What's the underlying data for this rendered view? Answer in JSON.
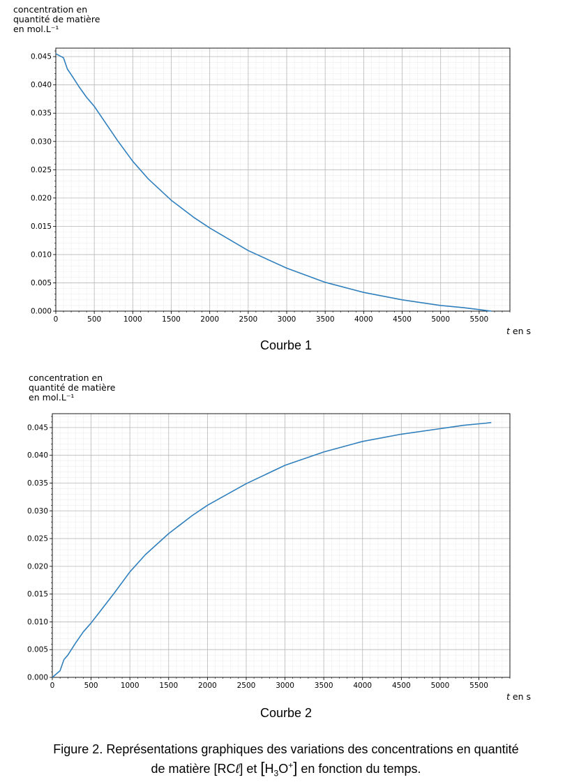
{
  "chart_data": [
    {
      "type": "line",
      "title": "",
      "caption": "Courbe 1",
      "ylabel": "concentration en\nquantité de matière\nen mol.L⁻¹",
      "xlabel_var": "t",
      "xlabel_unit": "en s",
      "xlim": [
        0,
        5900
      ],
      "ylim": [
        0,
        0.0465
      ],
      "xticks": [
        0,
        500,
        1000,
        1500,
        2000,
        2500,
        3000,
        3500,
        4000,
        4500,
        5000,
        5500
      ],
      "yticks": [
        "0.000",
        "0.005",
        "0.010",
        "0.015",
        "0.020",
        "0.025",
        "0.030",
        "0.035",
        "0.040",
        "0.045"
      ],
      "grid": true,
      "line_color": "#2f7fbd",
      "x": [
        0,
        100,
        150,
        200,
        300,
        400,
        500,
        600,
        800,
        1000,
        1200,
        1500,
        1800,
        2000,
        2500,
        3000,
        3500,
        4000,
        4500,
        5000,
        5300,
        5600,
        5660
      ],
      "y": [
        0.0455,
        0.0448,
        0.0428,
        0.0418,
        0.0397,
        0.0378,
        0.0362,
        0.0342,
        0.0302,
        0.0265,
        0.0234,
        0.0196,
        0.0165,
        0.0147,
        0.0107,
        0.0076,
        0.0051,
        0.0033,
        0.002,
        0.001,
        0.0006,
        0.0001,
        0.0
      ]
    },
    {
      "type": "line",
      "title": "",
      "caption": "Courbe 2",
      "ylabel": "concentration en\nquantité de matière\nen mol.L⁻¹",
      "xlabel_var": "t",
      "xlabel_unit": "en s",
      "xlim": [
        0,
        5900
      ],
      "ylim": [
        0,
        0.0475
      ],
      "xticks": [
        0,
        500,
        1000,
        1500,
        2000,
        2500,
        3000,
        3500,
        4000,
        4500,
        5000,
        5500
      ],
      "yticks": [
        "0.000",
        "0.005",
        "0.010",
        "0.015",
        "0.020",
        "0.025",
        "0.030",
        "0.035",
        "0.040",
        "0.045"
      ],
      "grid": true,
      "line_color": "#2f7fbd",
      "x": [
        0,
        100,
        120,
        150,
        200,
        300,
        400,
        500,
        600,
        800,
        1000,
        1200,
        1500,
        1800,
        2000,
        2500,
        3000,
        3500,
        4000,
        4500,
        5000,
        5300,
        5600,
        5660
      ],
      "y": [
        0.0,
        0.0012,
        0.002,
        0.0032,
        0.004,
        0.0062,
        0.0082,
        0.0098,
        0.0116,
        0.0152,
        0.019,
        0.0221,
        0.0259,
        0.0291,
        0.031,
        0.0349,
        0.0382,
        0.0406,
        0.0425,
        0.0438,
        0.0448,
        0.0454,
        0.0458,
        0.0459
      ]
    }
  ],
  "figure_caption": {
    "line1": "Figure 2. Représentations graphiques des variations des concentrations en quantité",
    "line2_a": "de matière [RC",
    "line2_ell": "ℓ",
    "line2_b": "] et ",
    "h3o_h": "H",
    "h3o_sub": "3",
    "h3o_o": "O",
    "h3o_sup": "+",
    "line2_c": " en fonction du temps."
  }
}
